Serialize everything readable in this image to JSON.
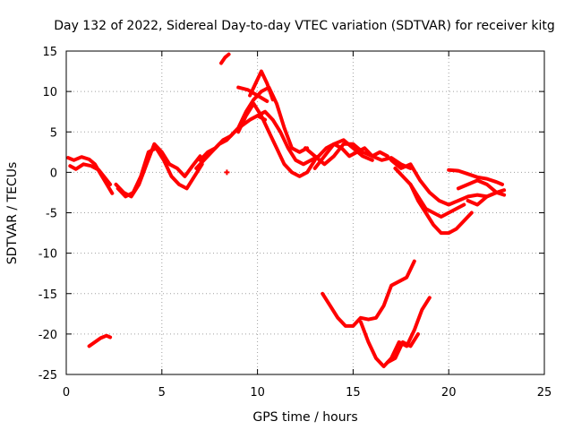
{
  "chart_data": {
    "type": "line",
    "title": "Day 132 of 2022, Sidereal Day-to-day VTEC variation (SDTVAR) for receiver kitg",
    "xlabel": "GPS time / hours",
    "ylabel": "SDTVAR / TECUs",
    "xlim": [
      0,
      25
    ],
    "ylim": [
      -25,
      15
    ],
    "xticks": [
      0,
      5,
      10,
      15,
      20,
      25
    ],
    "yticks": [
      15,
      10,
      5,
      0,
      -5,
      -10,
      -15,
      -20,
      -25
    ],
    "grid": true,
    "line_color": "#ff0000",
    "series": [
      {
        "x": [
          0.1,
          0.4,
          0.8,
          1.2,
          1.5,
          1.8,
          2.0,
          2.2,
          2.4
        ],
        "y": [
          1.8,
          1.5,
          1.9,
          1.6,
          1.0,
          -0.2,
          -1.0,
          -1.8,
          -2.6
        ]
      },
      {
        "x": [
          0.2,
          0.5,
          0.9,
          1.3,
          1.7,
          2.0,
          2.3
        ],
        "y": [
          0.8,
          0.4,
          1.0,
          0.8,
          0.3,
          -0.6,
          -1.5
        ]
      },
      {
        "x": [
          2.6,
          3.0,
          3.4,
          3.8,
          4.2,
          4.6,
          5.0,
          5.4,
          5.8,
          6.2,
          6.6,
          7.0
        ],
        "y": [
          -1.5,
          -2.5,
          -3.0,
          -1.5,
          1.0,
          3.5,
          2.5,
          1.0,
          0.5,
          -0.5,
          0.8,
          2.0
        ]
      },
      {
        "x": [
          2.7,
          3.1,
          3.5,
          3.9,
          4.3,
          4.7,
          5.1,
          5.5,
          5.9,
          6.3,
          6.7,
          7.1
        ],
        "y": [
          -2.0,
          -3.0,
          -2.5,
          -0.5,
          2.5,
          3.0,
          1.5,
          -0.5,
          -1.5,
          -2.0,
          -0.5,
          1.0
        ]
      },
      {
        "x": [
          6.8,
          7.2,
          7.6,
          8.0,
          8.4,
          8.8,
          9.2,
          9.6,
          10.0,
          10.4
        ],
        "y": [
          0.5,
          1.5,
          2.5,
          3.5,
          4.0,
          5.0,
          5.8,
          6.5,
          7.0,
          6.5
        ]
      },
      {
        "x": [
          7.0,
          7.4,
          7.8,
          8.2,
          8.6,
          9.0,
          9.4,
          9.8,
          10.2,
          10.6,
          11.0,
          11.4,
          11.8,
          12.2,
          12.6
        ],
        "y": [
          1.5,
          2.5,
          3.0,
          4.0,
          4.5,
          5.5,
          7.5,
          9.0,
          10.0,
          10.5,
          8.5,
          5.5,
          3.0,
          2.5,
          3.0
        ]
      },
      {
        "x": [
          9.0,
          9.4,
          9.8,
          10.2,
          10.6,
          11.0,
          11.4,
          11.8,
          12.2,
          12.6,
          13.0
        ],
        "y": [
          5.0,
          7.0,
          8.5,
          7.0,
          5.0,
          3.0,
          1.0,
          0.0,
          -0.5,
          0.0,
          1.5
        ]
      },
      {
        "x": [
          9.6,
          9.9,
          10.2,
          10.5,
          10.8
        ],
        "y": [
          9.5,
          11.0,
          12.5,
          11.0,
          9.0
        ]
      },
      {
        "x": [
          9.0,
          9.5,
          10.0,
          10.5
        ],
        "y": [
          10.5,
          10.2,
          9.5,
          8.8
        ]
      },
      {
        "x": [
          8.1,
          8.3,
          8.5
        ],
        "y": [
          13.5,
          14.2,
          14.6
        ]
      },
      {
        "x": [
          10.0,
          10.4,
          10.8,
          11.2,
          11.6,
          12.0,
          12.4,
          12.8,
          13.2,
          13.6,
          14.0,
          14.4,
          14.8,
          15.2,
          15.6,
          16.0,
          16.4,
          16.8
        ],
        "y": [
          7.0,
          7.5,
          6.5,
          5.0,
          3.0,
          1.5,
          1.0,
          1.5,
          2.0,
          3.0,
          3.5,
          3.0,
          2.0,
          2.5,
          3.0,
          2.0,
          2.5,
          2.0
        ]
      },
      {
        "x": [
          12.5,
          13.0,
          13.5,
          14.0,
          14.5,
          15.0,
          15.5,
          16.0,
          16.5,
          17.0,
          17.5,
          18.0
        ],
        "y": [
          3.0,
          2.0,
          1.0,
          2.0,
          3.5,
          3.5,
          2.5,
          2.0,
          1.5,
          1.8,
          1.0,
          0.5
        ]
      },
      {
        "x": [
          13.0,
          13.5,
          14.0,
          14.5,
          15.0,
          15.5,
          16.0
        ],
        "y": [
          0.5,
          2.0,
          3.5,
          4.0,
          3.0,
          2.0,
          1.5
        ]
      },
      {
        "x": [
          17.0,
          17.5,
          18.0,
          18.5,
          19.0,
          19.5,
          20.0,
          20.5,
          21.0,
          21.5,
          22.0,
          22.5,
          22.9
        ],
        "y": [
          1.5,
          0.5,
          1.0,
          -1.0,
          -2.5,
          -3.5,
          -4.0,
          -3.5,
          -3.0,
          -2.8,
          -3.0,
          -2.5,
          -2.8
        ]
      },
      {
        "x": [
          17.2,
          17.6,
          18.0,
          18.4,
          18.8,
          19.2,
          19.6,
          20.0,
          20.4,
          20.8,
          21.2
        ],
        "y": [
          0.5,
          -0.5,
          -1.5,
          -3.5,
          -5.0,
          -6.5,
          -7.5,
          -7.5,
          -7.0,
          -6.0,
          -5.0
        ]
      },
      {
        "x": [
          18.0,
          18.4,
          18.8,
          19.2,
          19.6,
          20.0,
          20.4,
          20.8
        ],
        "y": [
          -1.5,
          -3.0,
          -4.5,
          -5.0,
          -5.5,
          -5.0,
          -4.5,
          -4.0
        ]
      },
      {
        "x": [
          20.0,
          20.5,
          21.0,
          21.5,
          22.0,
          22.5,
          22.8
        ],
        "y": [
          0.3,
          0.2,
          -0.2,
          -0.6,
          -0.8,
          -1.2,
          -1.5
        ]
      },
      {
        "x": [
          20.5,
          21.0,
          21.5,
          22.0,
          22.5,
          22.9
        ],
        "y": [
          -2.0,
          -1.5,
          -1.0,
          -1.5,
          -2.5,
          -2.2
        ]
      },
      {
        "x": [
          21.0,
          21.5,
          22.0,
          22.5
        ],
        "y": [
          -3.5,
          -4.0,
          -3.0,
          -2.5
        ]
      },
      {
        "x": [
          13.4,
          13.8,
          14.2,
          14.6,
          15.0,
          15.4,
          15.8,
          16.2,
          16.6,
          17.0,
          17.4,
          17.8,
          18.2
        ],
        "y": [
          -15.0,
          -16.5,
          -18.0,
          -19.0,
          -19.0,
          -18.0,
          -18.2,
          -18.0,
          -16.5,
          -14.0,
          -13.5,
          -13.0,
          -11.0
        ]
      },
      {
        "x": [
          15.4,
          15.8,
          16.2,
          16.6,
          17.0,
          17.4,
          17.8,
          18.2,
          18.6,
          19.0
        ],
        "y": [
          -18.5,
          -21.0,
          -23.0,
          -24.0,
          -23.0,
          -21.0,
          -21.5,
          -19.5,
          -17.0,
          -15.5
        ]
      },
      {
        "x": [
          16.8,
          17.2,
          17.6,
          18.0,
          18.4
        ],
        "y": [
          -23.5,
          -23.0,
          -21.0,
          -21.5,
          -20.0
        ]
      },
      {
        "x": [
          1.2,
          1.5,
          1.8,
          2.1,
          2.3
        ],
        "y": [
          -21.5,
          -21.0,
          -20.5,
          -20.2,
          -20.4
        ]
      }
    ],
    "points": [
      {
        "x": 8.4,
        "y": 0.0
      }
    ]
  }
}
